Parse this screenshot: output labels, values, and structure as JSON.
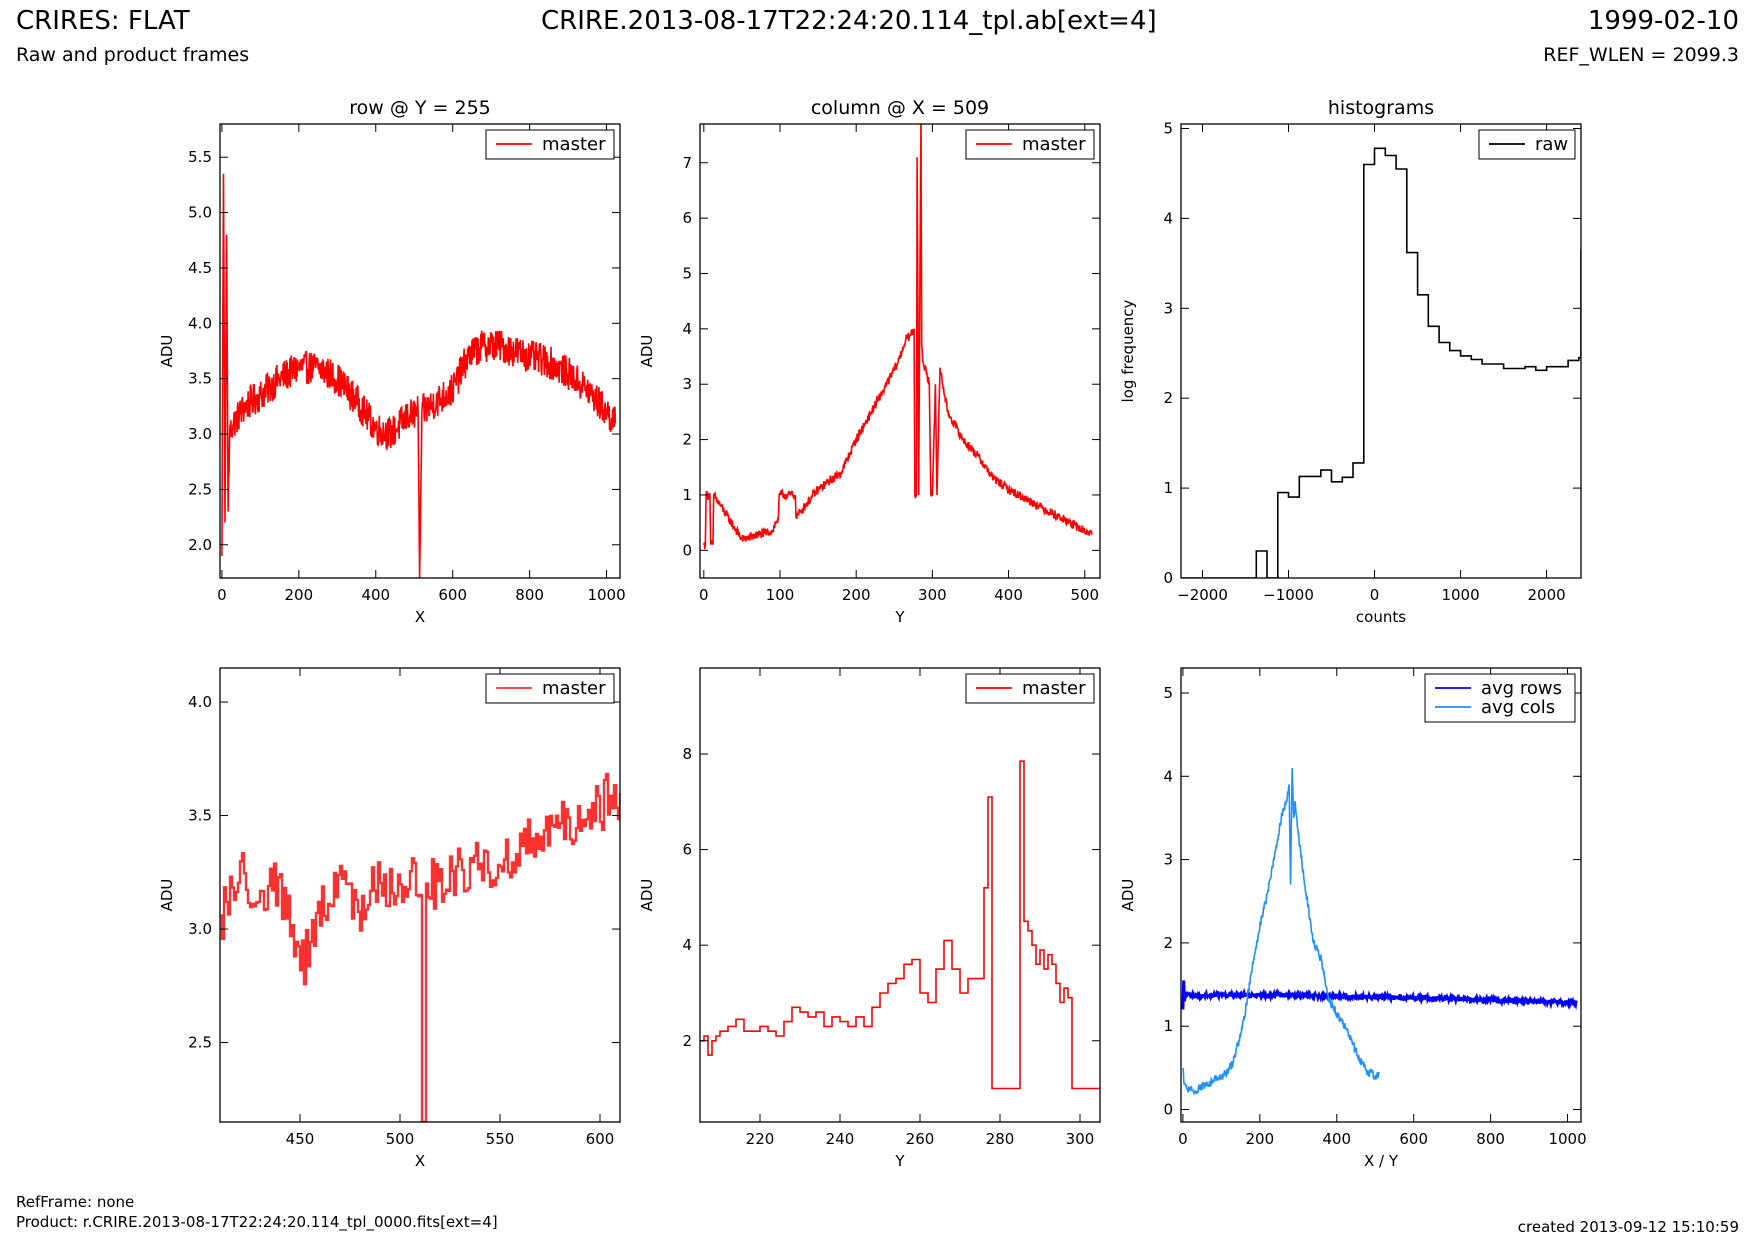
{
  "header": {
    "title": "CRIRES: FLAT",
    "subtitle": "Raw and product frames",
    "file": "CRIRE.2013-08-17T22:24:20.114_tpl.ab[ext=4]",
    "date": "1999-02-10",
    "ref_wlen": "REF_WLEN = 2099.3"
  },
  "footer": {
    "refframe": "RefFrame: none",
    "product": "Product: r.CRIRE.2013-08-17T22:24:20.114_tpl_0000.fits[ext=4]",
    "created": "created 2013-09-12 15:10:59"
  },
  "colors": {
    "master": "#ff0000",
    "master_zoom": "#ff3030",
    "raw": "#000000",
    "avg_rows": "#0000ff",
    "avg_cols": "#1e90ff"
  },
  "chart_data": [
    {
      "id": "row",
      "type": "line",
      "title": "row @ Y = 255",
      "xlabel": "X",
      "ylabel": "ADU",
      "xlim": [
        -5,
        1035
      ],
      "ylim": [
        1.7,
        5.8
      ],
      "xticks": [
        0,
        200,
        400,
        600,
        800,
        1000
      ],
      "yticks": [
        2.0,
        2.5,
        3.0,
        3.5,
        4.0,
        4.5,
        5.0,
        5.5
      ],
      "legend": "top-right",
      "series": [
        {
          "name": "master",
          "color": "#ff0000",
          "noise": 0.15,
          "x": [
            0,
            4,
            8,
            12,
            16,
            20,
            30,
            60,
            100,
            150,
            200,
            250,
            300,
            350,
            400,
            440,
            480,
            510,
            514,
            520,
            560,
            600,
            640,
            680,
            720,
            760,
            800,
            850,
            900,
            950,
            1000,
            1023
          ],
          "y": [
            1.9,
            5.35,
            2.2,
            4.8,
            2.3,
            3.0,
            3.1,
            3.25,
            3.35,
            3.5,
            3.6,
            3.6,
            3.5,
            3.3,
            3.05,
            3.0,
            3.15,
            3.2,
            1.7,
            3.2,
            3.3,
            3.4,
            3.7,
            3.8,
            3.8,
            3.75,
            3.7,
            3.65,
            3.55,
            3.4,
            3.2,
            3.1
          ]
        }
      ]
    },
    {
      "id": "column",
      "type": "line",
      "title": "column @ X = 509",
      "xlabel": "Y",
      "ylabel": "ADU",
      "xlim": [
        -5,
        520
      ],
      "ylim": [
        -0.5,
        7.7
      ],
      "xticks": [
        0,
        100,
        200,
        300,
        400,
        500
      ],
      "yticks": [
        0,
        1,
        2,
        3,
        4,
        5,
        6,
        7
      ],
      "legend": "top-right",
      "series": [
        {
          "name": "master",
          "color": "#ff0000",
          "noise": 0.08,
          "x": [
            0,
            2,
            3,
            8,
            9,
            12,
            13,
            50,
            90,
            98,
            99,
            120,
            121,
            150,
            180,
            200,
            220,
            240,
            255,
            265,
            272,
            276,
            277,
            279,
            280,
            282,
            285,
            286,
            288,
            292,
            296,
            298,
            300,
            304,
            306,
            310,
            320,
            340,
            360,
            380,
            400,
            440,
            480,
            500,
            510
          ],
          "y": [
            0.1,
            0.1,
            1.0,
            1.0,
            0.1,
            0.1,
            1.0,
            0.2,
            0.35,
            0.6,
            1.0,
            1.0,
            0.6,
            1.1,
            1.4,
            2.0,
            2.5,
            3.0,
            3.4,
            3.8,
            3.9,
            4.0,
            1.0,
            1.0,
            7.1,
            1.0,
            7.9,
            3.7,
            3.4,
            3.2,
            3.0,
            1.0,
            1.0,
            3.0,
            1.0,
            3.3,
            2.5,
            2.0,
            1.7,
            1.3,
            1.1,
            0.8,
            0.5,
            0.35,
            0.3
          ]
        }
      ]
    },
    {
      "id": "histograms",
      "type": "line",
      "title": "histograms",
      "xlabel": "counts",
      "ylabel": "log frequency",
      "xlim": [
        -2250,
        2400
      ],
      "ylim": [
        0,
        5.05
      ],
      "xticks": [
        -2000,
        -1000,
        0,
        1000,
        2000
      ],
      "xticklabels": [
        "−2000",
        "−1000",
        "0",
        "1000",
        "2000"
      ],
      "yticks": [
        0,
        1,
        2,
        3,
        4,
        5
      ],
      "legend": "top-right",
      "series": [
        {
          "name": "raw",
          "color": "#000000",
          "step": true,
          "x": [
            -2250,
            -1375,
            -1250,
            -1125,
            -1000,
            -875,
            -750,
            -625,
            -500,
            -375,
            -250,
            -125,
            0,
            125,
            250,
            375,
            500,
            625,
            750,
            875,
            1000,
            1125,
            1250,
            1375,
            1500,
            1625,
            1750,
            1875,
            2000,
            2125,
            2250,
            2375,
            2400
          ],
          "y": [
            0,
            0.3,
            0,
            0.95,
            0.9,
            1.13,
            1.13,
            1.2,
            1.07,
            1.12,
            1.28,
            4.6,
            4.78,
            4.7,
            4.55,
            3.62,
            3.15,
            2.8,
            2.62,
            2.53,
            2.47,
            2.43,
            2.38,
            2.38,
            2.33,
            2.33,
            2.35,
            2.31,
            2.35,
            2.35,
            2.42,
            2.45,
            3.65
          ]
        }
      ]
    },
    {
      "id": "row-zoom",
      "type": "line",
      "title": "",
      "xlabel": "X",
      "ylabel": "ADU",
      "xlim": [
        410,
        610
      ],
      "ylim": [
        2.15,
        4.15
      ],
      "xticks": [
        450,
        500,
        550,
        600
      ],
      "yticks": [
        2.5,
        3.0,
        3.5,
        4.0
      ],
      "legend": "top-right",
      "series": [
        {
          "name": "master",
          "color": "#ff3030",
          "step": true,
          "noise": 0.12,
          "x": [
            410,
            420,
            430,
            440,
            450,
            460,
            470,
            480,
            490,
            500,
            505,
            510,
            512,
            514,
            520,
            530,
            540,
            550,
            560,
            570,
            580,
            590,
            600,
            610
          ],
          "y": [
            3.05,
            3.25,
            3.15,
            3.2,
            2.8,
            3.1,
            3.2,
            3.1,
            3.25,
            3.15,
            3.3,
            3.15,
            2.15,
            3.2,
            3.2,
            3.25,
            3.3,
            3.25,
            3.35,
            3.4,
            3.45,
            3.45,
            3.55,
            3.6
          ]
        }
      ]
    },
    {
      "id": "column-zoom",
      "type": "line",
      "title": "",
      "xlabel": "Y",
      "ylabel": "ADU",
      "xlim": [
        205,
        305
      ],
      "ylim": [
        0.3,
        9.8
      ],
      "xticks": [
        220,
        240,
        260,
        280,
        300
      ],
      "yticks": [
        2,
        4,
        6,
        8
      ],
      "legend": "top-right",
      "series": [
        {
          "name": "master",
          "color": "#ff0000",
          "step": true,
          "x": [
            205,
            206,
            207,
            208,
            209,
            210,
            212,
            214,
            216,
            218,
            220,
            222,
            224,
            226,
            228,
            230,
            232,
            234,
            236,
            238,
            240,
            242,
            244,
            246,
            248,
            250,
            252,
            254,
            256,
            258,
            260,
            262,
            264,
            266,
            268,
            270,
            272,
            274,
            276,
            277,
            278,
            280,
            282,
            284,
            285,
            286,
            287,
            288,
            289,
            290,
            291,
            292,
            293,
            294,
            295,
            296,
            297,
            298,
            299,
            305
          ],
          "y": [
            2.0,
            2.1,
            1.7,
            2.0,
            2.1,
            2.2,
            2.3,
            2.45,
            2.2,
            2.2,
            2.3,
            2.2,
            2.1,
            2.4,
            2.7,
            2.6,
            2.5,
            2.6,
            2.3,
            2.5,
            2.4,
            2.3,
            2.5,
            2.3,
            2.7,
            3.0,
            3.2,
            3.3,
            3.6,
            3.7,
            3.0,
            2.8,
            3.5,
            4.1,
            3.5,
            3.0,
            3.3,
            3.3,
            5.2,
            7.1,
            1.0,
            1.0,
            1.0,
            1.0,
            7.85,
            4.5,
            4.3,
            4.0,
            3.6,
            3.9,
            3.5,
            3.8,
            3.6,
            3.2,
            2.8,
            3.1,
            2.9,
            1.0,
            1.0,
            1.0
          ]
        }
      ]
    },
    {
      "id": "averages",
      "type": "line",
      "title": "",
      "xlabel": "X / Y",
      "ylabel": "ADU",
      "xlim": [
        -5,
        1035
      ],
      "ylim": [
        -0.15,
        5.3
      ],
      "xticks": [
        0,
        200,
        400,
        600,
        800,
        1000
      ],
      "yticks": [
        0,
        1,
        2,
        3,
        4,
        5
      ],
      "legend": "top-right",
      "series": [
        {
          "name": "avg rows",
          "color": "#0000ff",
          "noise": 0.025,
          "width": 3,
          "x": [
            0,
            2,
            4,
            8,
            20,
            100,
            300,
            500,
            700,
            900,
            1023
          ],
          "y": [
            1.2,
            1.55,
            1.3,
            1.4,
            1.36,
            1.38,
            1.37,
            1.35,
            1.33,
            1.3,
            1.28
          ]
        },
        {
          "name": "avg cols",
          "color": "#1e90ff",
          "noise": 0.05,
          "x": [
            0,
            3,
            10,
            30,
            60,
            100,
            130,
            160,
            180,
            200,
            220,
            240,
            260,
            270,
            276,
            280,
            284,
            288,
            292,
            300,
            320,
            340,
            360,
            380,
            400,
            420,
            440,
            460,
            480,
            500,
            510
          ],
          "y": [
            0.5,
            0.3,
            0.25,
            0.22,
            0.3,
            0.38,
            0.55,
            1.1,
            1.7,
            2.2,
            2.6,
            3.1,
            3.6,
            3.7,
            3.9,
            2.7,
            4.1,
            3.5,
            3.7,
            3.3,
            2.6,
            2.0,
            1.8,
            1.3,
            1.15,
            1.0,
            0.8,
            0.6,
            0.45,
            0.4,
            0.45
          ]
        }
      ]
    }
  ]
}
